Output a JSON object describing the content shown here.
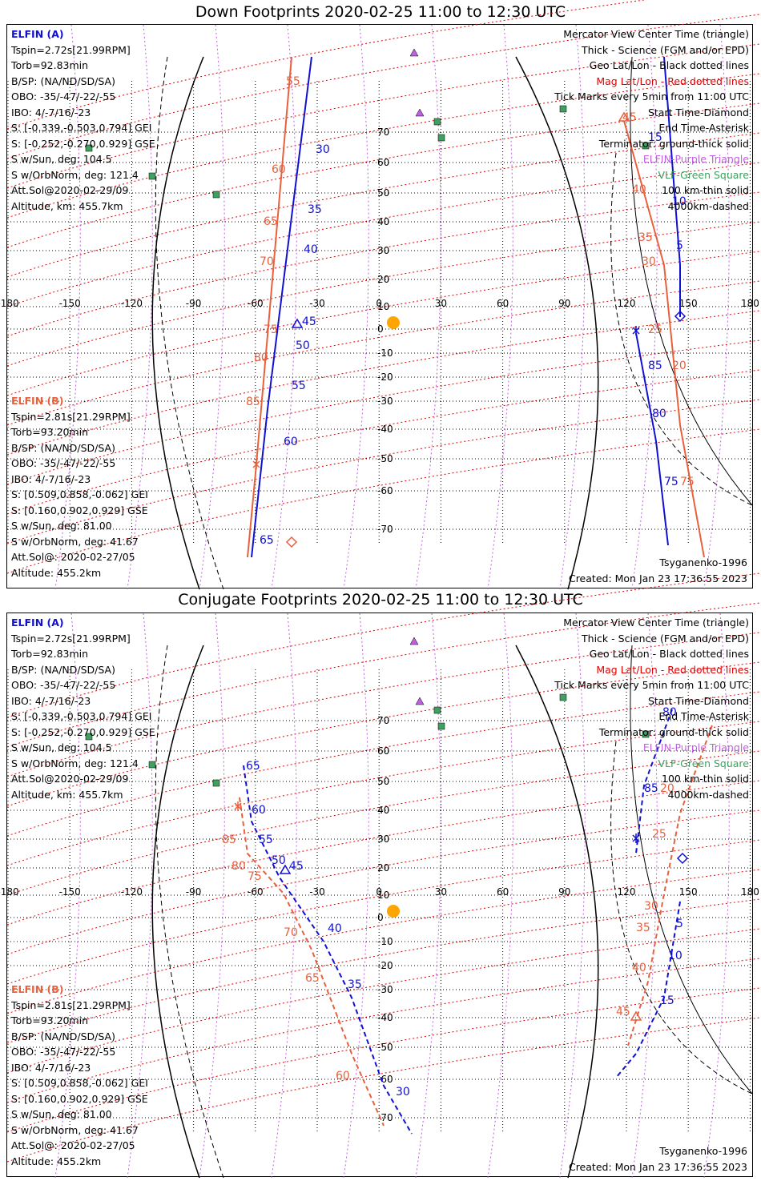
{
  "panels": [
    {
      "title": "Down Footprints 2020-02-25 11:00 to 12:30 UTC",
      "elfin_a": {
        "name": "ELFIN (A)",
        "lines": [
          "Tspin=2.72s[21.99RPM]",
          "Torb=92.83min",
          "B/SP: (NA/ND/SD/SA)",
          "OBO: -35/-47/-22/-55",
          "IBO: 4/-7/16/-23",
          "S: [-0.339,-0.503,0.794] GEI",
          "S: [-0.252,-0.270,0.929] GSE",
          "S w/Sun, deg: 104.5",
          "S w/OrbNorm, deg: 121.4",
          "Att.Sol@2020-02-29/09",
          "Altitude, km: 455.7km"
        ]
      },
      "elfin_b": {
        "name": "ELFIN (B)",
        "lines": [
          "Tspin=2.81s[21.29RPM]",
          "Torb=93.20min",
          "B/SP: (NA/ND/SD/SA)",
          "OBO: -35/-47/-22/-55",
          "IBO: 4/-7/16/-23",
          "S: [0.509,0.858,-0.062] GEI",
          "S: [0.160,0.902,0.929] GSE",
          "S w/Sun, deg: 81.00",
          "S w/OrbNorm, deg: 41.67",
          "Att.Sol@: 2020-02-27/05",
          "Altitude: 455.2km"
        ]
      },
      "legend": [
        {
          "text": "Mercator View Center Time (triangle)",
          "color": "#000000"
        },
        {
          "text": "Thick - Science (FGM and/or EPD)",
          "color": "#000000"
        },
        {
          "text": "Geo Lat/Lon - Black dotted lines",
          "color": "#000000"
        },
        {
          "text": "Mag Lat/Lon - Red dotted lines",
          "color": "#e00000"
        },
        {
          "text": "Tick Marks every 5min from 11:00 UTC",
          "color": "#000000"
        },
        {
          "text": "Start Time-Diamond",
          "color": "#000000"
        },
        {
          "text": "End Time-Asterisk",
          "color": "#000000"
        },
        {
          "text": "Terminator: ground-thick solid",
          "color": "#000000"
        },
        {
          "text": "ELFIN-Purple Triangle",
          "color": "#c060e0"
        },
        {
          "text": "VLF-Green Square",
          "color": "#40a060"
        },
        {
          "text": "100 km-thin solid",
          "color": "#000000"
        },
        {
          "text": "4000km-dashed",
          "color": "#000000"
        }
      ],
      "model": "Tsyganenko-1996",
      "created": "Created: Mon Jan 23 17:36:55 2023"
    },
    {
      "title": "Conjugate Footprints 2020-02-25 11:00 to 12:30 UTC",
      "elfin_a": {
        "name": "ELFIN (A)",
        "lines": [
          "Tspin=2.72s[21.99RPM]",
          "Torb=92.83min",
          "B/SP: (NA/ND/SD/SA)",
          "OBO: -35/-47/-22/-55",
          "IBO: 4/-7/16/-23",
          "S: [-0.339,-0.503,0.794] GEI",
          "S: [-0.252,-0.270,0.929] GSE",
          "S w/Sun, deg: 104.5",
          "S w/OrbNorm, deg: 121.4",
          "Att.Sol@2020-02-29/09",
          "Altitude, km: 455.7km"
        ]
      },
      "elfin_b": {
        "name": "ELFIN (B)",
        "lines": [
          "Tspin=2.81s[21.29RPM]",
          "Torb=93.20min",
          "B/SP: (NA/ND/SD/SA)",
          "OBO: -35/-47/-22/-55",
          "IBO: 4/-7/16/-23",
          "S: [0.509,0.858,-0.062] GEI",
          "S: [0.160,0.902,0.929] GSE",
          "S w/Sun, deg: 81.00",
          "S w/OrbNorm, deg: 41.67",
          "Att.Sol@: 2020-02-27/05",
          "Altitude: 455.2km"
        ]
      },
      "legend": [
        {
          "text": "Mercator View Center Time (triangle)",
          "color": "#000000"
        },
        {
          "text": "Thick - Science (FGM and/or EPD)",
          "color": "#000000"
        },
        {
          "text": "Geo Lat/Lon - Black dotted lines",
          "color": "#000000"
        },
        {
          "text": "Mag Lat/Lon - Red dotted lines",
          "color": "#e00000"
        },
        {
          "text": "Tick Marks every 5min from 11:00 UTC",
          "color": "#000000"
        },
        {
          "text": "Start Time-Diamond",
          "color": "#000000"
        },
        {
          "text": "End Time-Asterisk",
          "color": "#000000"
        },
        {
          "text": "Terminator: ground-thick solid",
          "color": "#000000"
        },
        {
          "text": "ELFIN-Purple Triangle",
          "color": "#c060e0"
        },
        {
          "text": "VLF-Green Square",
          "color": "#40a060"
        },
        {
          "text": "100 km-thin solid",
          "color": "#000000"
        },
        {
          "text": "4000km-dashed",
          "color": "#000000"
        }
      ],
      "model": "Tsyganenko-1996",
      "created": "Created: Mon Jan 23 17:36:55 2023"
    }
  ],
  "grid": {
    "lon_labels": [
      "-180",
      "-150",
      "-120",
      "-90",
      "-60",
      "-30",
      "0",
      "30",
      "60",
      "90",
      "120",
      "150",
      "180"
    ],
    "lat_labels": [
      "70",
      "60",
      "50",
      "40",
      "30",
      "20",
      "10",
      "0",
      "-10",
      "-20",
      "-30",
      "-40",
      "-50",
      "-60",
      "-70"
    ]
  },
  "colors": {
    "elfin_a": "#1010d0",
    "elfin_b": "#e8603c",
    "mag_grid": "#e00000",
    "purple": "#c060e0",
    "green": "#40a060",
    "sun": "#ffa500"
  },
  "tracks": {
    "down": {
      "a_west_ticks": [
        "30",
        "35",
        "40",
        "45",
        "50",
        "55",
        "60",
        "65"
      ],
      "b_west_ticks": [
        "55",
        "60",
        "65",
        "70",
        "75",
        "80",
        "85"
      ],
      "a_east_ticks": [
        "15",
        "10",
        "5",
        "85",
        "80",
        "75"
      ],
      "b_east_ticks": [
        "45",
        "40",
        "35",
        "30",
        "25",
        "20",
        "75"
      ]
    },
    "conj": {
      "a_west_ticks": [
        "65",
        "60",
        "55",
        "50",
        "45",
        "40",
        "35",
        "30"
      ],
      "b_west_ticks": [
        "85",
        "80",
        "75",
        "70",
        "65",
        "60"
      ],
      "a_east_ticks": [
        "80",
        "85",
        "5",
        "10",
        "15"
      ],
      "b_east_ticks": [
        "20",
        "25",
        "30",
        "35",
        "40",
        "45"
      ]
    }
  }
}
